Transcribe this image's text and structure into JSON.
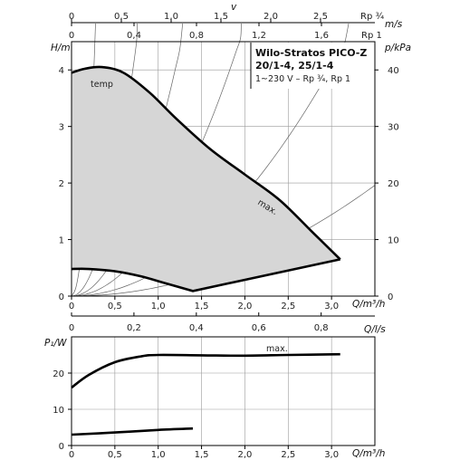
{
  "chart_data": [
    {
      "type": "line",
      "title": "Wilo-Stratos PICO-Z",
      "title_line2": "20/1-4, 25/1-4",
      "subtitle": "1~230 V – Rp ¾, Rp 1",
      "xlabel": "Q/m³/h",
      "ylabel_left": "H/m",
      "ylabel_right": "p/kPa",
      "xlim": [
        0,
        3.5
      ],
      "ylim": [
        0,
        4.5
      ],
      "ylim_right": [
        0,
        45
      ],
      "x_ticks": [
        "0",
        "0,5",
        "1,0",
        "1,5",
        "2,0",
        "2,5",
        "3,0"
      ],
      "y_ticks": [
        "0",
        "1",
        "2",
        "3",
        "4"
      ],
      "y_right_ticks": [
        "0",
        "10",
        "20",
        "30",
        "40"
      ],
      "top_axis_v_label": "v",
      "top_axis_rp34_label": "Rp ¾",
      "top_axis_rp34_unit": "m/s",
      "top_axis_rp34_ticks": [
        "0",
        "0,5",
        "1,0",
        "1,5",
        "2,0",
        "2,5"
      ],
      "top_axis_rp1_label": "Rp 1",
      "top_axis_rp1_ticks": [
        "0",
        "0,4",
        "0,8",
        "1,2",
        "1,6"
      ],
      "bottom_axis_label": "Q/l/s",
      "bottom_axis_ticks": [
        "0",
        "0,2",
        "0,4",
        "0,6",
        "0,8"
      ],
      "grid": true,
      "annotations": [
        "temp",
        "max."
      ],
      "series": [
        {
          "x": [
            0,
            0.15,
            0.35,
            0.6,
            0.9,
            1.2,
            1.6,
            2.0,
            2.4,
            2.8,
            3.1
          ],
          "y": [
            3.95,
            4.02,
            4.05,
            3.95,
            3.6,
            3.15,
            2.6,
            2.15,
            1.7,
            1.1,
            0.65
          ]
        },
        {
          "x": [
            0,
            0.2,
            0.5,
            0.8,
            1.1,
            1.4,
            3.1
          ],
          "y": [
            0.48,
            0.48,
            0.44,
            0.35,
            0.22,
            0.09,
            0.65
          ]
        }
      ]
    },
    {
      "type": "line",
      "xlabel": "Q/m³/h",
      "ylabel": "P₁/W",
      "xlim": [
        0,
        3.5
      ],
      "ylim": [
        0,
        30
      ],
      "x_ticks": [
        "0",
        "0,5",
        "1,0",
        "1,5",
        "2,0",
        "2,5",
        "3,0"
      ],
      "y_ticks": [
        "0",
        "10",
        "20"
      ],
      "grid": true,
      "annotations": [
        "max."
      ],
      "series": [
        {
          "x": [
            0,
            0.2,
            0.5,
            0.8,
            1.0,
            1.5,
            2.0,
            2.5,
            3.1
          ],
          "y": [
            16,
            19.5,
            23,
            24.6,
            25,
            24.9,
            24.8,
            25,
            25.2
          ]
        },
        {
          "x": [
            0,
            0.5,
            1.0,
            1.4
          ],
          "y": [
            3,
            3.6,
            4.3,
            4.7
          ]
        }
      ]
    }
  ]
}
